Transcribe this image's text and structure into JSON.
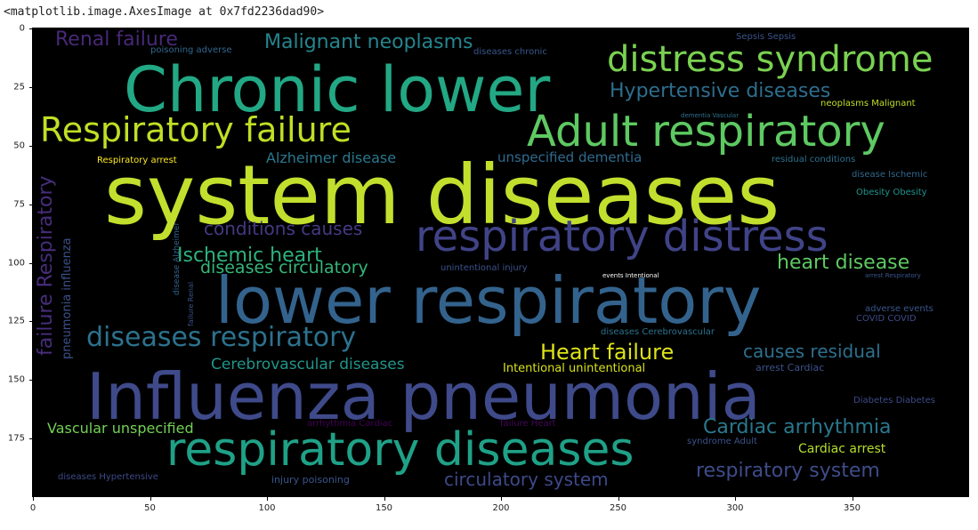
{
  "output_repr": "<matplotlib.image.AxesImage at 0x7fd2236dad90>",
  "axes": {
    "y_ticks": [
      "0",
      "25",
      "50",
      "75",
      "100",
      "125",
      "150",
      "175"
    ],
    "x_ticks": [
      "0",
      "50",
      "100",
      "150",
      "200",
      "250",
      "300",
      "350"
    ]
  },
  "words": [
    {
      "text": "system diseases",
      "color": "#c3df2e"
    },
    {
      "text": "Influenza pneumonia",
      "color": "#3f4a8a"
    },
    {
      "text": "lower respiratory",
      "color": "#33638d"
    },
    {
      "text": "Chronic lower",
      "color": "#22a884"
    },
    {
      "text": "respiratory diseases",
      "color": "#1fa187"
    },
    {
      "text": "respiratory distress",
      "color": "#404387"
    },
    {
      "text": "Adult respiratory",
      "color": "#5ec962"
    },
    {
      "text": "distress syndrome",
      "color": "#7ad151"
    },
    {
      "text": "Respiratory failure",
      "color": "#c0df25"
    },
    {
      "text": "diseases respiratory",
      "color": "#2c728e"
    },
    {
      "text": "Hypertensive diseases",
      "color": "#2e6e8e"
    },
    {
      "text": "Malignant neoplasms",
      "color": "#25858e"
    },
    {
      "text": "Renal failure",
      "color": "#482878"
    },
    {
      "text": "Heart failure",
      "color": "#dde318"
    },
    {
      "text": "heart disease",
      "color": "#5ec962"
    },
    {
      "text": "Cardiac arrhythmia",
      "color": "#2a788e"
    },
    {
      "text": "respiratory system",
      "color": "#3e4c8a"
    },
    {
      "text": "circulatory system",
      "color": "#3e4989"
    },
    {
      "text": "causes residual",
      "color": "#2d708e"
    },
    {
      "text": "Ischemic heart",
      "color": "#2db27d"
    },
    {
      "text": "conditions causes",
      "color": "#443983"
    },
    {
      "text": "diseases circulatory",
      "color": "#35b779"
    },
    {
      "text": "Cerebrovascular diseases",
      "color": "#1f968b"
    },
    {
      "text": "Alzheimer disease",
      "color": "#2a788e"
    },
    {
      "text": "unspecified dementia",
      "color": "#2f6b8e"
    },
    {
      "text": "Vascular unspecified",
      "color": "#73d056"
    },
    {
      "text": "Cardiac arrest",
      "color": "#b5de2b"
    },
    {
      "text": "Intentional unintentional",
      "color": "#d8e219"
    },
    {
      "text": "failure Respiratory",
      "color": "#472d7b"
    },
    {
      "text": "pneumonia influenza",
      "color": "#3b528b"
    },
    {
      "text": "Respiratory arrest",
      "color": "#fde725"
    },
    {
      "text": "poisoning adverse",
      "color": "#31688e"
    },
    {
      "text": "diseases chronic",
      "color": "#39568c"
    },
    {
      "text": "Sepsis Sepsis",
      "color": "#3b528b"
    },
    {
      "text": "neoplasms Malignant",
      "color": "#c2df23"
    },
    {
      "text": "dementia Vascular",
      "color": "#2c728e"
    },
    {
      "text": "residual conditions",
      "color": "#2c728e"
    },
    {
      "text": "disease Ischemic",
      "color": "#31688e"
    },
    {
      "text": "Obesity Obesity",
      "color": "#1f948c"
    },
    {
      "text": "unintentional injury",
      "color": "#3b528b"
    },
    {
      "text": "events Intentional",
      "color": "#ffffff"
    },
    {
      "text": "arrest Respiratory",
      "color": "#39568c"
    },
    {
      "text": "adverse events",
      "color": "#39568c"
    },
    {
      "text": "COVID COVID",
      "color": "#3e4c8a"
    },
    {
      "text": "diseases Cerebrovascular",
      "color": "#2c728e"
    },
    {
      "text": "arrest Cardiac",
      "color": "#3b528b"
    },
    {
      "text": "Diabetes Diabetes",
      "color": "#3e4a89"
    },
    {
      "text": "arrhythmia Cardiac",
      "color": "#440154"
    },
    {
      "text": "failure Heart",
      "color": "#46075a"
    },
    {
      "text": "syndrome Adult",
      "color": "#3b528b"
    },
    {
      "text": "diseases Hypertensive",
      "color": "#3e4a89"
    },
    {
      "text": "injury poisoning",
      "color": "#39568c"
    },
    {
      "text": "failure Renal",
      "color": "#3b528b"
    },
    {
      "text": "disease Alzheimer",
      "color": "#33638d"
    }
  ]
}
